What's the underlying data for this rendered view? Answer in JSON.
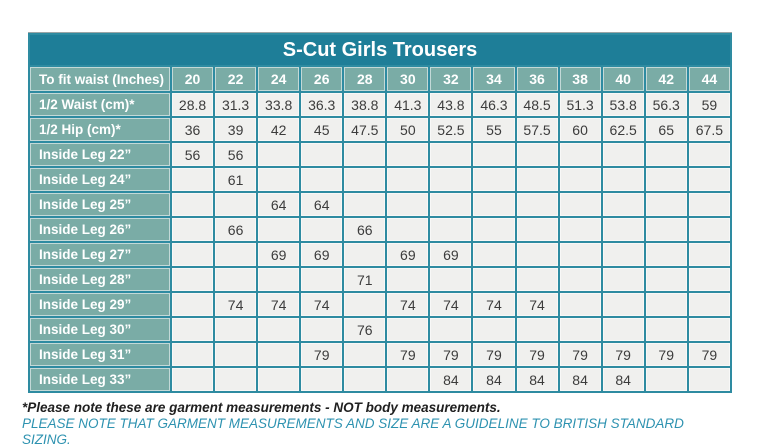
{
  "colors": {
    "title_bar": "#1E7E98",
    "header_cell": "#7AACA6",
    "grid": "#2E8BA1",
    "cell_bg": "#F0F0EE",
    "cell_text": "#3C3C3C",
    "note_dark": "#1F1F1F",
    "note_teal": "#2D92B0"
  },
  "chart_data": {
    "type": "table",
    "title": "S-Cut Girls Trousers",
    "header_label": "To fit waist (Inches)",
    "columns": [
      "20",
      "22",
      "24",
      "26",
      "28",
      "30",
      "32",
      "34",
      "36",
      "38",
      "40",
      "42",
      "44"
    ],
    "rows": [
      {
        "label": "1/2 Waist (cm)*",
        "values": [
          "28.8",
          "31.3",
          "33.8",
          "36.3",
          "38.8",
          "41.3",
          "43.8",
          "46.3",
          "48.5",
          "51.3",
          "53.8",
          "56.3",
          "59"
        ]
      },
      {
        "label": "1/2 Hip (cm)*",
        "values": [
          "36",
          "39",
          "42",
          "45",
          "47.5",
          "50",
          "52.5",
          "55",
          "57.5",
          "60",
          "62.5",
          "65",
          "67.5"
        ]
      },
      {
        "label": "Inside Leg 22”",
        "values": [
          "56",
          "56",
          "",
          "",
          "",
          "",
          "",
          "",
          "",
          "",
          "",
          "",
          ""
        ]
      },
      {
        "label": "Inside Leg 24”",
        "values": [
          "",
          "61",
          "",
          "",
          "",
          "",
          "",
          "",
          "",
          "",
          "",
          "",
          ""
        ]
      },
      {
        "label": "Inside Leg 25”",
        "values": [
          "",
          "",
          "64",
          "64",
          "",
          "",
          "",
          "",
          "",
          "",
          "",
          "",
          ""
        ]
      },
      {
        "label": "Inside Leg 26”",
        "values": [
          "",
          "66",
          "",
          "",
          "66",
          "",
          "",
          "",
          "",
          "",
          "",
          "",
          ""
        ]
      },
      {
        "label": "Inside Leg 27”",
        "values": [
          "",
          "",
          "69",
          "69",
          "",
          "69",
          "69",
          "",
          "",
          "",
          "",
          "",
          ""
        ]
      },
      {
        "label": "Inside Leg 28”",
        "values": [
          "",
          "",
          "",
          "",
          "71",
          "",
          "",
          "",
          "",
          "",
          "",
          "",
          ""
        ]
      },
      {
        "label": "Inside Leg 29”",
        "values": [
          "",
          "74",
          "74",
          "74",
          "",
          "74",
          "74",
          "74",
          "74",
          "",
          "",
          "",
          ""
        ]
      },
      {
        "label": "Inside Leg 30”",
        "values": [
          "",
          "",
          "",
          "",
          "76",
          "",
          "",
          "",
          "",
          "",
          "",
          "",
          ""
        ]
      },
      {
        "label": "Inside Leg 31”",
        "values": [
          "",
          "",
          "",
          "79",
          "",
          "79",
          "79",
          "79",
          "79",
          "79",
          "79",
          "79",
          "79"
        ]
      },
      {
        "label": "Inside Leg 33”",
        "values": [
          "",
          "",
          "",
          "",
          "",
          "",
          "84",
          "84",
          "84",
          "84",
          "84",
          "",
          ""
        ]
      }
    ]
  },
  "footnotes": {
    "line1": "*Please note these are garment measurements - NOT body measurements.",
    "line2": "PLEASE NOTE THAT GARMENT MEASUREMENTS AND SIZE ARE A GUIDELINE TO BRITISH STANDARD SIZING."
  }
}
